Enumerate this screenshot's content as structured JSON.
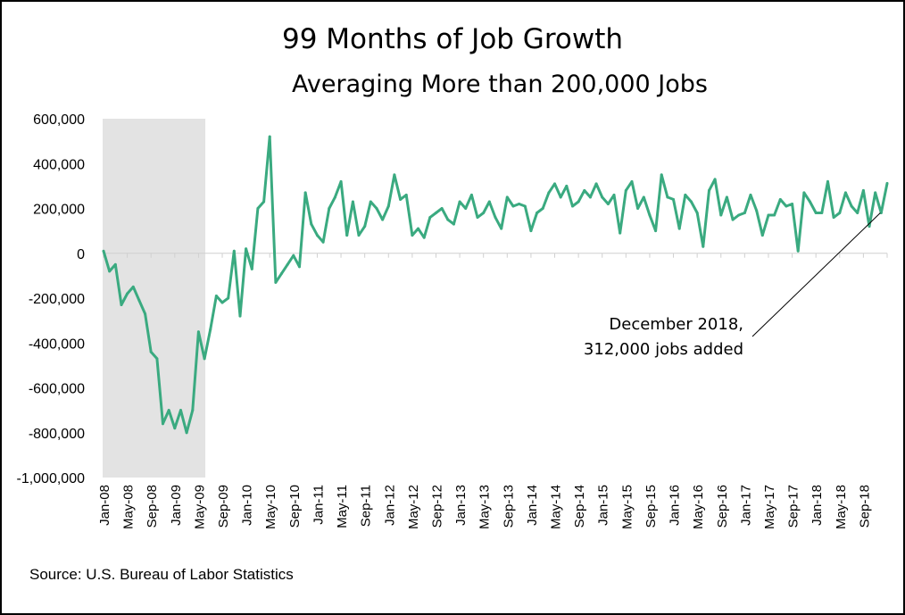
{
  "chart_data": {
    "type": "line",
    "title": "99 Months of Job Growth",
    "subtitle": "Averaging More than 200,000 Jobs",
    "source": "Source: U.S. Bureau of Labor Statistics",
    "series_color": "#3aaa80",
    "recession_shade_color": "#e3e3e3",
    "recession_period": [
      "Jan-08",
      "Jun-09"
    ],
    "ylim": [
      -1000000,
      600000
    ],
    "y_ticks": [
      {
        "value": 600000,
        "label": "600,000"
      },
      {
        "value": 400000,
        "label": "400,000"
      },
      {
        "value": 200000,
        "label": "200,000"
      },
      {
        "value": 0,
        "label": "0"
      },
      {
        "value": -200000,
        "label": "-200,000"
      },
      {
        "value": -400000,
        "label": "-400,000"
      },
      {
        "value": -600000,
        "label": "-600,000"
      },
      {
        "value": -800000,
        "label": "-800,000"
      },
      {
        "value": -1000000,
        "label": "-1,000,000"
      }
    ],
    "x_start": "Jan-08",
    "x_end": "Dec-18",
    "x_tick_labels": [
      "Jan-08",
      "May-08",
      "Sep-08",
      "Jan-09",
      "May-09",
      "Sep-09",
      "Jan-10",
      "May-10",
      "Sep-10",
      "Jan-11",
      "May-11",
      "Sep-11",
      "Jan-12",
      "May-12",
      "Sep-12",
      "Jan-13",
      "May-13",
      "Sep-13",
      "Jan-14",
      "May-14",
      "Sep-14",
      "Jan-15",
      "May-15",
      "Sep-15",
      "Jan-16",
      "May-16",
      "Sep-16",
      "Jan-17",
      "May-17",
      "Sep-17",
      "Jan-18",
      "May-18",
      "Sep-18"
    ],
    "values": [
      10000,
      -80000,
      -50000,
      -230000,
      -180000,
      -150000,
      -210000,
      -270000,
      -440000,
      -470000,
      -760000,
      -700000,
      -780000,
      -700000,
      -800000,
      -700000,
      -350000,
      -470000,
      -340000,
      -190000,
      -220000,
      -200000,
      10000,
      -280000,
      20000,
      -70000,
      200000,
      230000,
      520000,
      -130000,
      -90000,
      -50000,
      -10000,
      -60000,
      270000,
      130000,
      80000,
      50000,
      200000,
      250000,
      320000,
      80000,
      230000,
      80000,
      120000,
      230000,
      200000,
      150000,
      210000,
      350000,
      240000,
      260000,
      80000,
      110000,
      70000,
      160000,
      180000,
      200000,
      150000,
      130000,
      230000,
      200000,
      260000,
      160000,
      180000,
      230000,
      160000,
      110000,
      250000,
      210000,
      220000,
      210000,
      100000,
      180000,
      200000,
      270000,
      310000,
      250000,
      300000,
      210000,
      230000,
      280000,
      250000,
      310000,
      250000,
      220000,
      260000,
      90000,
      280000,
      320000,
      200000,
      250000,
      170000,
      100000,
      350000,
      250000,
      240000,
      110000,
      260000,
      230000,
      180000,
      30000,
      280000,
      330000,
      170000,
      250000,
      150000,
      170000,
      180000,
      260000,
      190000,
      80000,
      170000,
      170000,
      240000,
      210000,
      220000,
      10000,
      270000,
      230000,
      180000,
      180000,
      320000,
      160000,
      180000,
      270000,
      210000,
      180000,
      280000,
      120000,
      270000,
      180000,
      312000
    ],
    "annotation": {
      "line1": "December 2018,",
      "line2": "312,000 jobs added",
      "target": "Dec-18"
    }
  }
}
